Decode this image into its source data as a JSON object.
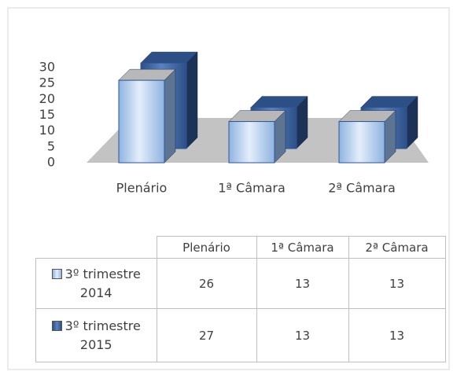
{
  "chart_data": {
    "type": "bar3d",
    "categories": [
      "Plenário",
      "1ª Câmara",
      "2ª Câmara"
    ],
    "series": [
      {
        "name": "3º trimestre 2014",
        "color": "#8fb3e0",
        "values": [
          26,
          13,
          13
        ]
      },
      {
        "name": "3º trimestre 2015",
        "color": "#2c4f86",
        "values": [
          27,
          13,
          13
        ]
      }
    ],
    "ylim": [
      0,
      30
    ],
    "yticks": [
      0,
      5,
      10,
      15,
      20,
      25,
      30
    ],
    "grid": false,
    "data_table": true
  }
}
